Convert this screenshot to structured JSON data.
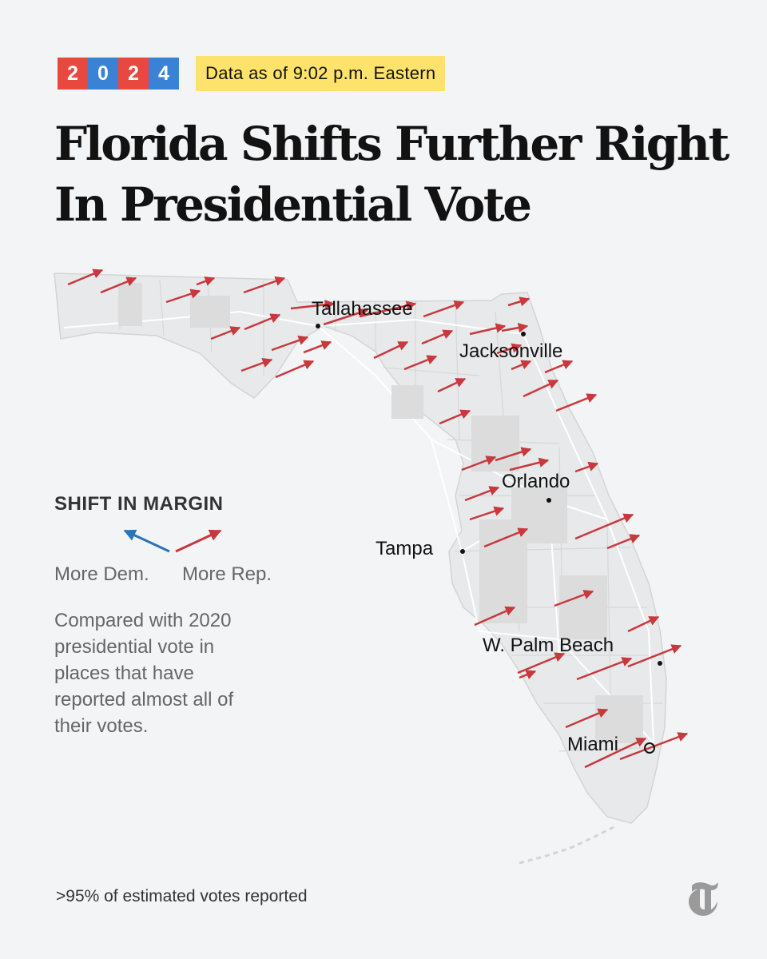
{
  "header": {
    "year_digits": [
      "2",
      "0",
      "2",
      "4"
    ],
    "year_colors": [
      "#e8483f",
      "#3a82d6",
      "#e8483f",
      "#3a82d6"
    ],
    "timestamp": "Data as of 9:02 p.m. Eastern",
    "timestamp_bg": "#fde36b",
    "title_line1": "Florida Shifts Further Right",
    "title_line2": "In Presidential Vote"
  },
  "map": {
    "cities": [
      {
        "name": "Tallahassee",
        "marker": "dot"
      },
      {
        "name": "Jacksonville",
        "marker": "dot"
      },
      {
        "name": "Orlando",
        "marker": "dot"
      },
      {
        "name": "Tampa",
        "marker": "dot"
      },
      {
        "name": "W. Palm Beach",
        "marker": "dot"
      },
      {
        "name": "Miami",
        "marker": "ring"
      }
    ],
    "arrow_color_rep": "#c8383c",
    "arrow_color_dem": "#2a74b8",
    "land_color": "#e8e9ea",
    "border_color": "#d4d4d4"
  },
  "legend": {
    "title": "SHIFT IN MARGIN",
    "dem_label": "More Dem.",
    "rep_label": "More Rep.",
    "note": "Compared with 2020 presidential vote in places that have reported almost all of their votes."
  },
  "footer": {
    "reporting": ">95% of estimated votes reported",
    "logo": "nyt-t-logo-icon"
  }
}
